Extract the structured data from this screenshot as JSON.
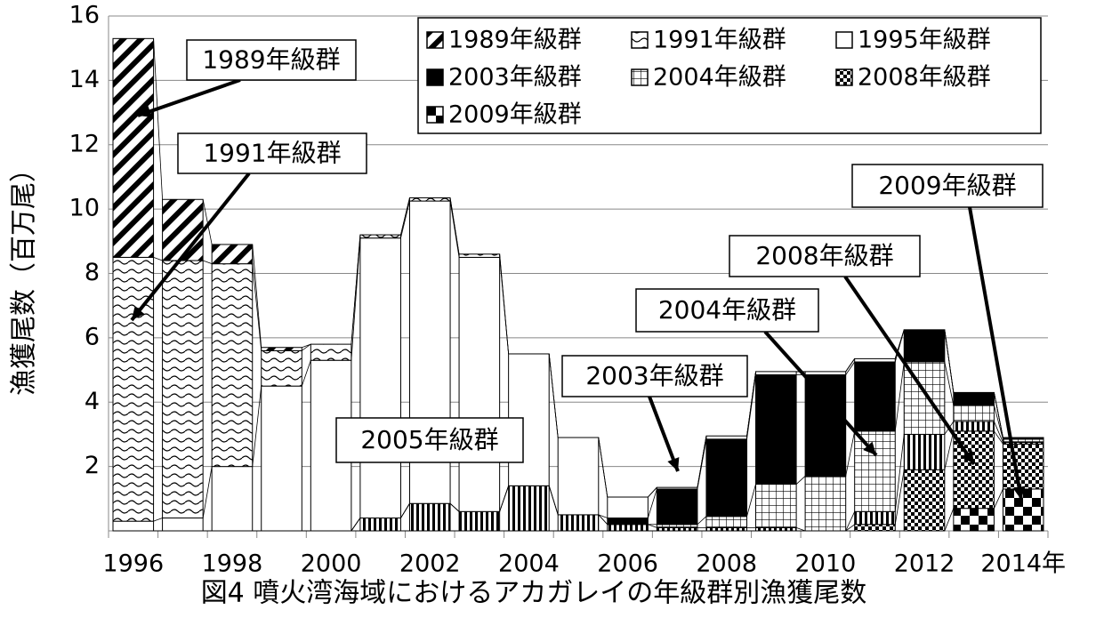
{
  "chart_data": {
    "type": "stacked_bar",
    "title": "図4 噴火湾海域におけるアカガレイの年級群別漁獲尾数",
    "y_label": "漁獲尾数（百万尾）",
    "categories": [
      "1996",
      null,
      "1998",
      null,
      "2000",
      null,
      "2002",
      null,
      "2004",
      null,
      "2006",
      null,
      "2008",
      null,
      "2010",
      null,
      "2012",
      null,
      "2014年"
    ],
    "ylim": [
      0,
      16
    ],
    "yticks": [
      2,
      4,
      6,
      8,
      10,
      12,
      14,
      16
    ],
    "series": [
      {
        "name": "1989年級群",
        "color": "#000000",
        "in_legend": true,
        "values": [
          6.8,
          1.9,
          0.6,
          0.1,
          0,
          0,
          0,
          0,
          0,
          0,
          0,
          0,
          0,
          0,
          0,
          0,
          0,
          0,
          0
        ]
      },
      {
        "name": "1991年級群",
        "color": "#000000",
        "in_legend": true,
        "values": [
          8.2,
          8.0,
          6.3,
          1.1,
          0.5,
          0.1,
          0.1,
          0.1,
          0,
          0,
          0,
          0,
          0,
          0,
          0,
          0,
          0,
          0,
          0
        ]
      },
      {
        "name": "1995年級群",
        "color": "#000000",
        "in_legend": true,
        "values": [
          0.3,
          0.4,
          2.0,
          4.5,
          5.3,
          8.7,
          9.4,
          7.9,
          4.1,
          2.4,
          0.65,
          0.05,
          0.1,
          0.1,
          0.1,
          0.1,
          0,
          0,
          0
        ]
      },
      {
        "name": "2003年級群",
        "color": "#000000",
        "in_legend": true,
        "values": [
          0,
          0,
          0,
          0,
          0,
          0,
          0,
          0,
          0,
          0,
          0.2,
          1.1,
          2.4,
          3.4,
          3.15,
          2.15,
          1.0,
          0.4,
          0.05
        ]
      },
      {
        "name": "2004年級群",
        "color": "#000000",
        "in_legend": true,
        "values": [
          0,
          0,
          0,
          0,
          0,
          0,
          0,
          0,
          0,
          0,
          0,
          0.1,
          0.35,
          1.35,
          1.7,
          2.5,
          2.25,
          0.5,
          0.1
        ]
      },
      {
        "name": "2005年級群",
        "color": "#000000",
        "in_legend": false,
        "values": [
          0,
          0,
          0,
          0,
          0,
          0.4,
          0.85,
          0.6,
          1.4,
          0.5,
          0.2,
          0.1,
          0.1,
          0.1,
          0,
          0.4,
          1.1,
          0.3,
          0.05
        ]
      },
      {
        "name": "2008年級群",
        "color": "#000000",
        "in_legend": true,
        "values": [
          0,
          0,
          0,
          0,
          0,
          0,
          0,
          0,
          0,
          0,
          0,
          0,
          0,
          0,
          0,
          0.2,
          1.9,
          2.4,
          1.4
        ]
      },
      {
        "name": "2009年級群",
        "color": "#000000",
        "in_legend": true,
        "values": [
          0,
          0,
          0,
          0,
          0,
          0,
          0,
          0,
          0,
          0,
          0,
          0,
          0,
          0,
          0,
          0,
          0,
          0.7,
          1.3
        ]
      }
    ],
    "annotations": [
      "1989年級群",
      "1991年級群",
      "2009年級群",
      "2008年級群",
      "2004年級群",
      "2003年級群",
      "2005年級群"
    ]
  }
}
